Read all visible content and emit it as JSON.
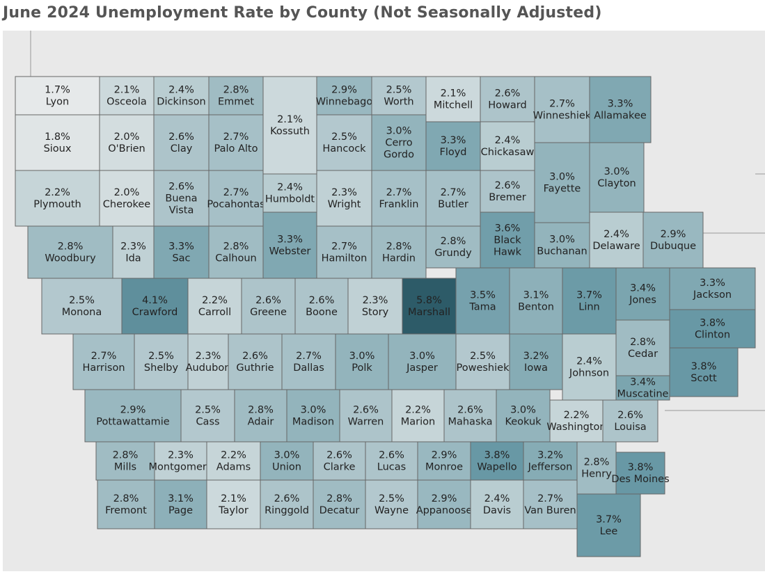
{
  "title": "June 2024 Unemployment Rate by County (Not Seasonally Adjusted)",
  "color_scale": {
    "low": "#e6e9ea",
    "high": "#2d5b68"
  },
  "counties": [
    {
      "name": "Lyon",
      "rate": "1.7%"
    },
    {
      "name": "Osceola",
      "rate": "2.1%"
    },
    {
      "name": "Dickinson",
      "rate": "2.4%"
    },
    {
      "name": "Emmet",
      "rate": "2.8%"
    },
    {
      "name": "Kossuth",
      "rate": "2.1%"
    },
    {
      "name": "Winnebago",
      "rate": "2.9%"
    },
    {
      "name": "Worth",
      "rate": "2.5%"
    },
    {
      "name": "Mitchell",
      "rate": "2.1%"
    },
    {
      "name": "Howard",
      "rate": "2.6%"
    },
    {
      "name": "Winneshiek",
      "rate": "2.7%"
    },
    {
      "name": "Allamakee",
      "rate": "3.3%"
    },
    {
      "name": "Sioux",
      "rate": "1.8%"
    },
    {
      "name": "O'Brien",
      "rate": "2.0%"
    },
    {
      "name": "Clay",
      "rate": "2.6%"
    },
    {
      "name": "Palo Alto",
      "rate": "2.7%"
    },
    {
      "name": "Hancock",
      "rate": "2.5%"
    },
    {
      "name": "Cerro Gordo",
      "rate": "3.0%"
    },
    {
      "name": "Floyd",
      "rate": "3.3%"
    },
    {
      "name": "Chickasaw",
      "rate": "2.4%"
    },
    {
      "name": "Fayette",
      "rate": "3.0%"
    },
    {
      "name": "Clayton",
      "rate": "3.0%"
    },
    {
      "name": "Plymouth",
      "rate": "2.2%"
    },
    {
      "name": "Cherokee",
      "rate": "2.0%"
    },
    {
      "name": "Buena Vista",
      "rate": "2.6%"
    },
    {
      "name": "Pocahontas",
      "rate": "2.7%"
    },
    {
      "name": "Humboldt",
      "rate": "2.4%"
    },
    {
      "name": "Wright",
      "rate": "2.3%"
    },
    {
      "name": "Franklin",
      "rate": "2.7%"
    },
    {
      "name": "Butler",
      "rate": "2.7%"
    },
    {
      "name": "Bremer",
      "rate": "2.6%"
    },
    {
      "name": "Woodbury",
      "rate": "2.8%"
    },
    {
      "name": "Ida",
      "rate": "2.3%"
    },
    {
      "name": "Sac",
      "rate": "3.3%"
    },
    {
      "name": "Calhoun",
      "rate": "2.8%"
    },
    {
      "name": "Webster",
      "rate": "3.3%"
    },
    {
      "name": "Hamilton",
      "rate": "2.7%"
    },
    {
      "name": "Hardin",
      "rate": "2.8%"
    },
    {
      "name": "Grundy",
      "rate": "2.8%"
    },
    {
      "name": "Black Hawk",
      "rate": "3.6%"
    },
    {
      "name": "Buchanan",
      "rate": "3.0%"
    },
    {
      "name": "Delaware",
      "rate": "2.4%"
    },
    {
      "name": "Dubuque",
      "rate": "2.9%"
    },
    {
      "name": "Monona",
      "rate": "2.5%"
    },
    {
      "name": "Crawford",
      "rate": "4.1%"
    },
    {
      "name": "Carroll",
      "rate": "2.2%"
    },
    {
      "name": "Greene",
      "rate": "2.6%"
    },
    {
      "name": "Boone",
      "rate": "2.6%"
    },
    {
      "name": "Story",
      "rate": "2.3%"
    },
    {
      "name": "Marshall",
      "rate": "5.8%"
    },
    {
      "name": "Tama",
      "rate": "3.5%"
    },
    {
      "name": "Benton",
      "rate": "3.1%"
    },
    {
      "name": "Linn",
      "rate": "3.7%"
    },
    {
      "name": "Jones",
      "rate": "3.4%"
    },
    {
      "name": "Jackson",
      "rate": "3.3%"
    },
    {
      "name": "Harrison",
      "rate": "2.7%"
    },
    {
      "name": "Shelby",
      "rate": "2.5%"
    },
    {
      "name": "Audubon",
      "rate": "2.3%"
    },
    {
      "name": "Guthrie",
      "rate": "2.6%"
    },
    {
      "name": "Dallas",
      "rate": "2.7%"
    },
    {
      "name": "Polk",
      "rate": "3.0%"
    },
    {
      "name": "Jasper",
      "rate": "3.0%"
    },
    {
      "name": "Poweshiek",
      "rate": "2.5%"
    },
    {
      "name": "Iowa",
      "rate": "3.2%"
    },
    {
      "name": "Johnson",
      "rate": "2.4%"
    },
    {
      "name": "Cedar",
      "rate": "2.8%"
    },
    {
      "name": "Clinton",
      "rate": "3.8%"
    },
    {
      "name": "Scott",
      "rate": "3.8%"
    },
    {
      "name": "Muscatine",
      "rate": "3.4%"
    },
    {
      "name": "Pottawattamie",
      "rate": "2.9%"
    },
    {
      "name": "Cass",
      "rate": "2.5%"
    },
    {
      "name": "Adair",
      "rate": "2.8%"
    },
    {
      "name": "Madison",
      "rate": "3.0%"
    },
    {
      "name": "Warren",
      "rate": "2.6%"
    },
    {
      "name": "Marion",
      "rate": "2.2%"
    },
    {
      "name": "Mahaska",
      "rate": "2.6%"
    },
    {
      "name": "Keokuk",
      "rate": "3.0%"
    },
    {
      "name": "Washington",
      "rate": "2.2%"
    },
    {
      "name": "Louisa",
      "rate": "2.6%"
    },
    {
      "name": "Mills",
      "rate": "2.8%"
    },
    {
      "name": "Montgomery",
      "rate": "2.3%"
    },
    {
      "name": "Adams",
      "rate": "2.2%"
    },
    {
      "name": "Union",
      "rate": "3.0%"
    },
    {
      "name": "Clarke",
      "rate": "2.6%"
    },
    {
      "name": "Lucas",
      "rate": "2.6%"
    },
    {
      "name": "Monroe",
      "rate": "2.9%"
    },
    {
      "name": "Wapello",
      "rate": "3.8%"
    },
    {
      "name": "Jefferson",
      "rate": "3.2%"
    },
    {
      "name": "Henry",
      "rate": "2.8%"
    },
    {
      "name": "Des Moines",
      "rate": "3.8%"
    },
    {
      "name": "Fremont",
      "rate": "2.8%"
    },
    {
      "name": "Page",
      "rate": "3.1%"
    },
    {
      "name": "Taylor",
      "rate": "2.1%"
    },
    {
      "name": "Ringgold",
      "rate": "2.6%"
    },
    {
      "name": "Decatur",
      "rate": "2.8%"
    },
    {
      "name": "Wayne",
      "rate": "2.5%"
    },
    {
      "name": "Appanoose",
      "rate": "2.9%"
    },
    {
      "name": "Davis",
      "rate": "2.4%"
    },
    {
      "name": "Van Buren",
      "rate": "2.7%"
    },
    {
      "name": "Lee",
      "rate": "3.7%"
    }
  ]
}
